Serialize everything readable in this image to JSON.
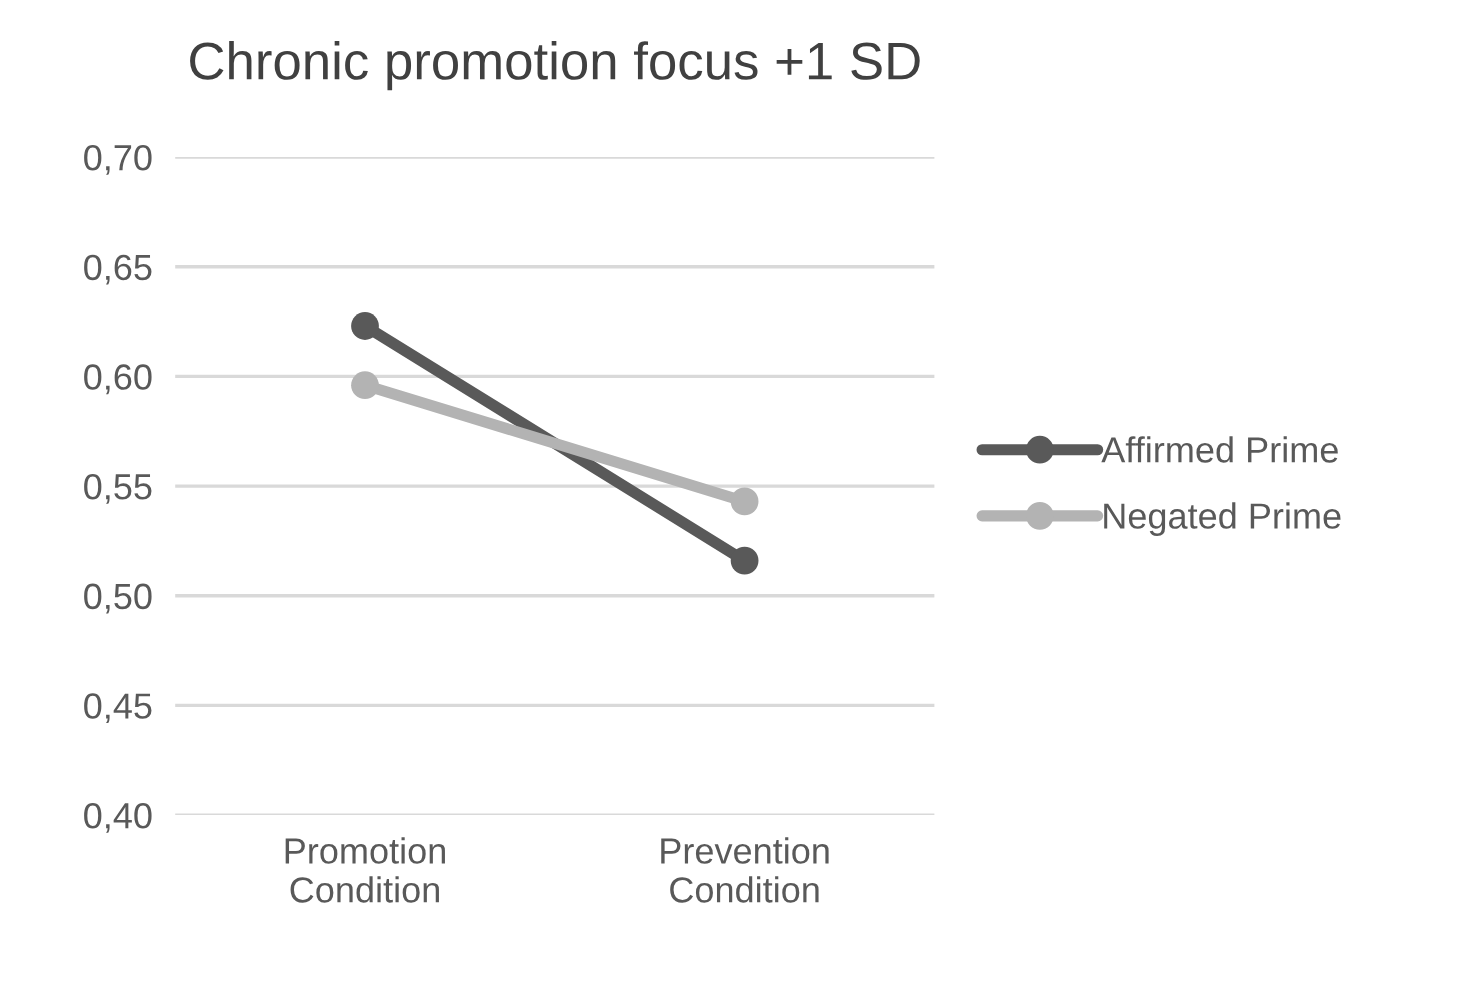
{
  "chart_data": {
    "type": "line",
    "title": "Chronic promotion focus +1 SD",
    "categories": [
      "Promotion\nCondition",
      "Prevention\nCondition"
    ],
    "series": [
      {
        "name": "Affirmed Prime",
        "color": "#595959",
        "values": [
          0.623,
          0.516
        ]
      },
      {
        "name": "Negated Prime",
        "color": "#b3b3b3",
        "values": [
          0.596,
          0.543
        ]
      }
    ],
    "ylim": [
      0.4,
      0.7
    ],
    "yticks": [
      {
        "value": 0.4,
        "label": "0,40"
      },
      {
        "value": 0.45,
        "label": "0,45"
      },
      {
        "value": 0.5,
        "label": "0,50"
      },
      {
        "value": 0.55,
        "label": "0,55"
      },
      {
        "value": 0.6,
        "label": "0,60"
      },
      {
        "value": 0.65,
        "label": "0,65"
      },
      {
        "value": 0.7,
        "label": "0,70"
      }
    ],
    "grid": "y",
    "legend": "right",
    "marker": "circle",
    "line_style": "solid"
  }
}
